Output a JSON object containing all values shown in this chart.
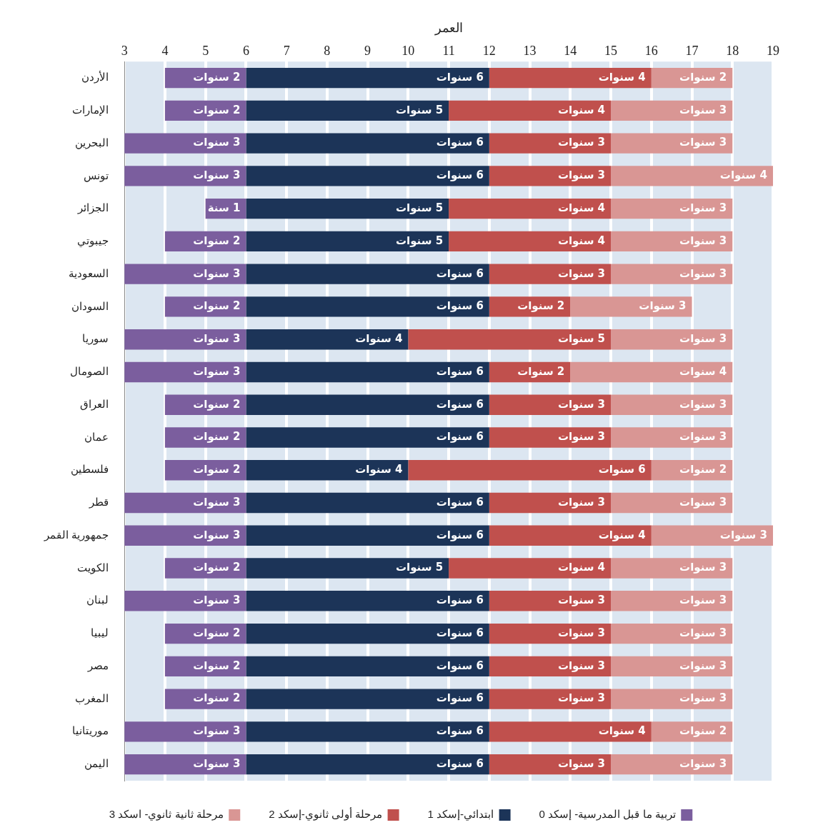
{
  "chart_data": {
    "type": "bar",
    "orientation": "horizontal",
    "xlabel": "العمر",
    "categories": [
      "الأردن",
      "الإمارات",
      "البحرين",
      "تونس",
      "الجزائر",
      "جيبوتي",
      "السعودية",
      "السودان",
      "سوريا",
      "الصومال",
      "العراق",
      "عمان",
      "فلسطين",
      "قطر",
      "جمهورية القمر",
      "الكويت",
      "لبنان",
      "ليبيا",
      "مصر",
      "المغرب",
      "موريتانيا",
      "اليمن"
    ],
    "xlim": [
      3,
      19
    ],
    "xticks": [
      3,
      4,
      5,
      6,
      7,
      8,
      9,
      10,
      11,
      12,
      13,
      14,
      15,
      16,
      17,
      18,
      19
    ],
    "grid": "x",
    "legend": "bottom",
    "series": [
      {
        "name": "تربية ما قبل المدرسية- إسكد 0",
        "color": "#7b5e9e",
        "base": [
          4,
          4,
          3,
          3,
          5,
          4,
          3,
          4,
          3,
          3,
          4,
          4,
          4,
          3,
          3,
          4,
          3,
          4,
          4,
          4,
          3,
          3
        ],
        "values": [
          2,
          2,
          3,
          3,
          1,
          2,
          3,
          2,
          3,
          3,
          2,
          2,
          2,
          3,
          3,
          2,
          3,
          2,
          2,
          2,
          3,
          3
        ],
        "value_labels": [
          "2 سنوات",
          "2 سنوات",
          "3 سنوات",
          "3 سنوات",
          "1 سنة",
          "2 سنوات",
          "3 سنوات",
          "2 سنوات",
          "3 سنوات",
          "3 سنوات",
          "2 سنوات",
          "2 سنوات",
          "2 سنوات",
          "3 سنوات",
          "3 سنوات",
          "2 سنوات",
          "3 سنوات",
          "2 سنوات",
          "2 سنوات",
          "2 سنوات",
          "3 سنوات",
          "3 سنوات"
        ]
      },
      {
        "name": "ابتدائي-إسكد 1",
        "color": "#1c3458",
        "base": [
          6,
          6,
          6,
          6,
          6,
          6,
          6,
          6,
          6,
          6,
          6,
          6,
          6,
          6,
          6,
          6,
          6,
          6,
          6,
          6,
          6,
          6
        ],
        "values": [
          6,
          5,
          6,
          6,
          5,
          5,
          6,
          6,
          4,
          6,
          6,
          6,
          4,
          6,
          6,
          5,
          6,
          6,
          6,
          6,
          6,
          6
        ],
        "value_labels": [
          "6 سنوات",
          "5 سنوات",
          "6 سنوات",
          "6 سنوات",
          "5 سنوات",
          "5 سنوات",
          "6 سنوات",
          "6 سنوات",
          "4 سنوات",
          "6 سنوات",
          "6 سنوات",
          "6 سنوات",
          "4 سنوات",
          "6 سنوات",
          "6 سنوات",
          "5 سنوات",
          "6 سنوات",
          "6 سنوات",
          "6 سنوات",
          "6 سنوات",
          "6 سنوات",
          "6 سنوات"
        ]
      },
      {
        "name": "مرحلة أولى ثانوي-إسكد 2",
        "color": "#c0504d",
        "base": [
          12,
          11,
          12,
          12,
          11,
          11,
          12,
          12,
          10,
          12,
          12,
          12,
          10,
          12,
          12,
          11,
          12,
          12,
          12,
          12,
          12,
          12
        ],
        "values": [
          4,
          4,
          3,
          3,
          4,
          4,
          3,
          2,
          5,
          2,
          3,
          3,
          6,
          3,
          4,
          4,
          3,
          3,
          3,
          3,
          4,
          3
        ],
        "value_labels": [
          "4 سنوات",
          "4 سنوات",
          "3 سنوات",
          "3 سنوات",
          "4 سنوات",
          "4 سنوات",
          "3 سنوات",
          "2 سنوات",
          "5 سنوات",
          "2 سنوات",
          "3 سنوات",
          "3 سنوات",
          "6 سنوات",
          "3 سنوات",
          "4 سنوات",
          "4 سنوات",
          "3 سنوات",
          "3 سنوات",
          "3 سنوات",
          "3 سنوات",
          "4 سنوات",
          "3 سنوات"
        ]
      },
      {
        "name": "مرحلة ثانية ثانوي- اسكد 3",
        "color": "#d99694",
        "base": [
          16,
          15,
          15,
          15,
          15,
          15,
          15,
          14,
          15,
          14,
          15,
          15,
          16,
          15,
          16,
          15,
          15,
          15,
          15,
          15,
          16,
          15
        ],
        "values": [
          2,
          3,
          3,
          4,
          3,
          3,
          3,
          3,
          3,
          4,
          3,
          3,
          2,
          3,
          3,
          3,
          3,
          3,
          3,
          3,
          2,
          3
        ],
        "value_labels": [
          "2 سنوات",
          "3 سنوات",
          "3 سنوات",
          "4 سنوات",
          "3 سنوات",
          "3 سنوات",
          "3 سنوات",
          "3 سنوات",
          "3 سنوات",
          "4 سنوات",
          "3 سنوات",
          "3 سنوات",
          "2 سنوات",
          "3 سنوات",
          "3 سنوات",
          "3 سنوات",
          "3 سنوات",
          "3 سنوات",
          "3 سنوات",
          "3 سنوات",
          "2 سنوات",
          "3 سنوات"
        ]
      }
    ]
  }
}
